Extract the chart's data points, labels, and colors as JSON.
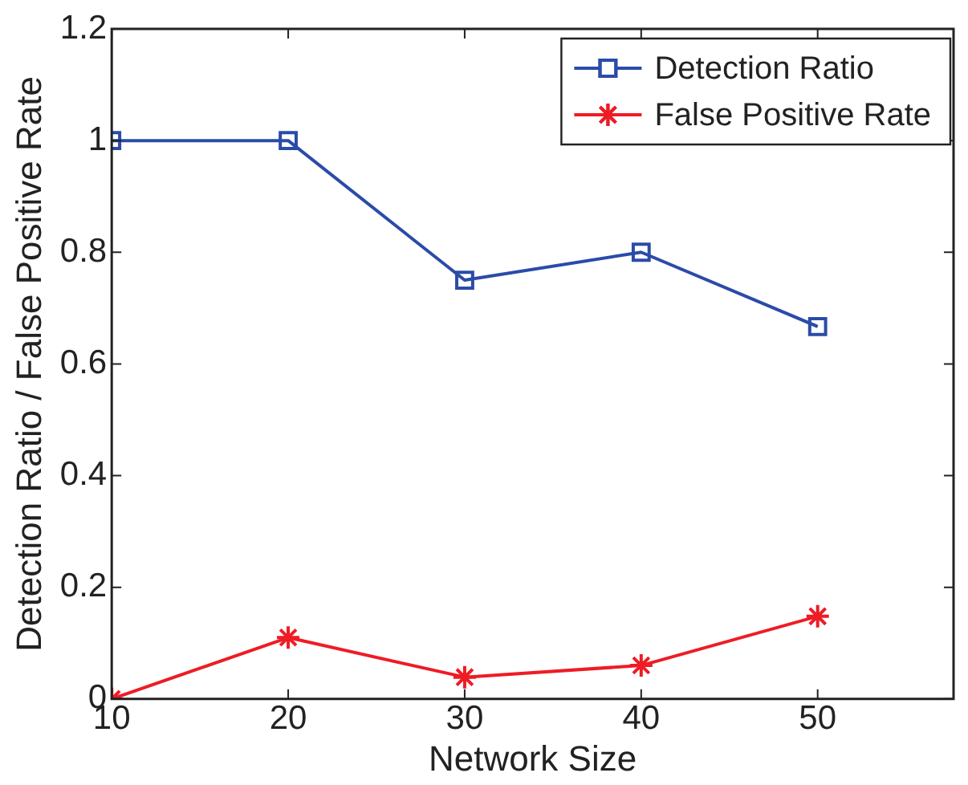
{
  "chart_data": {
    "type": "line",
    "xlabel": "Network Size",
    "ylabel": "Detection Ratio / False Positive Rate",
    "x": [
      10,
      20,
      30,
      40,
      50
    ],
    "series": [
      {
        "name": "Detection Ratio",
        "color": "#2b4ba8",
        "marker": "square",
        "values": [
          1,
          1,
          0.75,
          0.8,
          0.667
        ]
      },
      {
        "name": "False Positive Rate",
        "color": "#ee1c25",
        "marker": "cross",
        "values": [
          0,
          0.11,
          0.039,
          0.06,
          0.148
        ]
      }
    ],
    "xlim": [
      10,
      57.7
    ],
    "xticks": [
      10,
      20,
      30,
      40,
      50
    ],
    "ylim": [
      0,
      1.2
    ],
    "yticks": [
      0,
      0.2,
      0.4,
      0.6,
      0.8,
      1,
      1.2
    ],
    "legend": "top right",
    "line_style": "solid"
  }
}
